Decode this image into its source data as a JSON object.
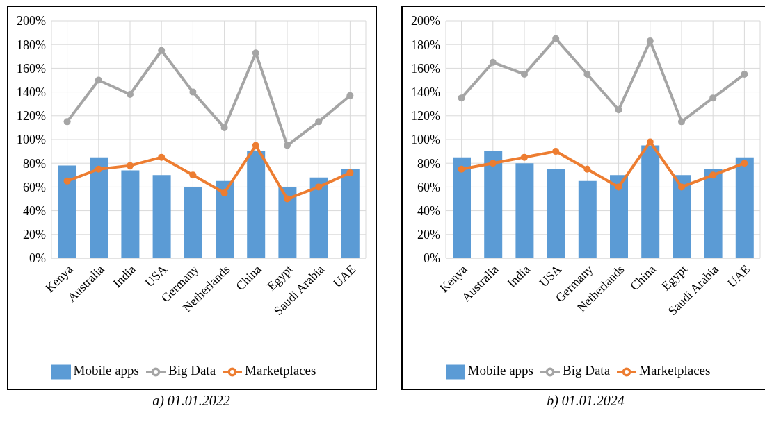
{
  "chart_data": [
    {
      "type": "bar",
      "title": "a) 01.01.2022",
      "categories": [
        "Kenya",
        "Australia",
        "India",
        "USA",
        "Germany",
        "Netherlands",
        "China",
        "Egypt",
        "Saudi Arabia",
        "UAE"
      ],
      "series": [
        {
          "name": "Mobile apps",
          "color": "#5b9bd5",
          "values": [
            78,
            85,
            74,
            70,
            60,
            65,
            90,
            60,
            68,
            75
          ]
        },
        {
          "name": "Big Data",
          "type": "line",
          "color": "#a5a5a5",
          "values": [
            115,
            150,
            138,
            175,
            140,
            110,
            173,
            95,
            115,
            137
          ]
        },
        {
          "name": "Marketplaces",
          "type": "line",
          "color": "#ed7d31",
          "values": [
            65,
            75,
            78,
            85,
            70,
            55,
            95,
            50,
            60,
            72
          ]
        }
      ],
      "ylim": [
        0,
        200
      ],
      "yticks": [
        {
          "value": 0,
          "label": "0%"
        },
        {
          "value": 20,
          "label": "20%"
        },
        {
          "value": 40,
          "label": "40%"
        },
        {
          "value": 60,
          "label": "60%"
        },
        {
          "value": 80,
          "label": "80%"
        },
        {
          "value": 100,
          "label": "100%"
        },
        {
          "value": 120,
          "label": "120%"
        },
        {
          "value": 140,
          "label": "140%"
        },
        {
          "value": 160,
          "label": "160%"
        },
        {
          "value": 180,
          "label": "180%"
        },
        {
          "value": 200,
          "label": "200%"
        }
      ],
      "grid": true,
      "legend": "bottom",
      "marker": "circle"
    },
    {
      "type": "bar",
      "title": "b) 01.01.2024",
      "categories": [
        "Kenya",
        "Australia",
        "India",
        "USA",
        "Germany",
        "Netherlands",
        "China",
        "Egypt",
        "Saudi Arabia",
        "UAE"
      ],
      "series": [
        {
          "name": "Mobile apps",
          "color": "#5b9bd5",
          "values": [
            85,
            90,
            80,
            75,
            65,
            70,
            95,
            70,
            75,
            85
          ]
        },
        {
          "name": "Big Data",
          "type": "line",
          "color": "#a5a5a5",
          "values": [
            135,
            165,
            155,
            185,
            155,
            125,
            183,
            115,
            135,
            155
          ]
        },
        {
          "name": "Marketplaces",
          "type": "line",
          "color": "#ed7d31",
          "values": [
            75,
            80,
            85,
            90,
            75,
            60,
            98,
            60,
            70,
            80
          ]
        }
      ],
      "ylim": [
        0,
        200
      ],
      "yticks": [
        {
          "value": 0,
          "label": "0%"
        },
        {
          "value": 20,
          "label": "20%"
        },
        {
          "value": 40,
          "label": "40%"
        },
        {
          "value": 60,
          "label": "60%"
        },
        {
          "value": 80,
          "label": "80%"
        },
        {
          "value": 100,
          "label": "100%"
        },
        {
          "value": 120,
          "label": "120%"
        },
        {
          "value": 140,
          "label": "140%"
        },
        {
          "value": 160,
          "label": "160%"
        },
        {
          "value": 180,
          "label": "180%"
        },
        {
          "value": 200,
          "label": "200%"
        }
      ],
      "grid": true,
      "legend": "bottom",
      "marker": "circle"
    }
  ]
}
